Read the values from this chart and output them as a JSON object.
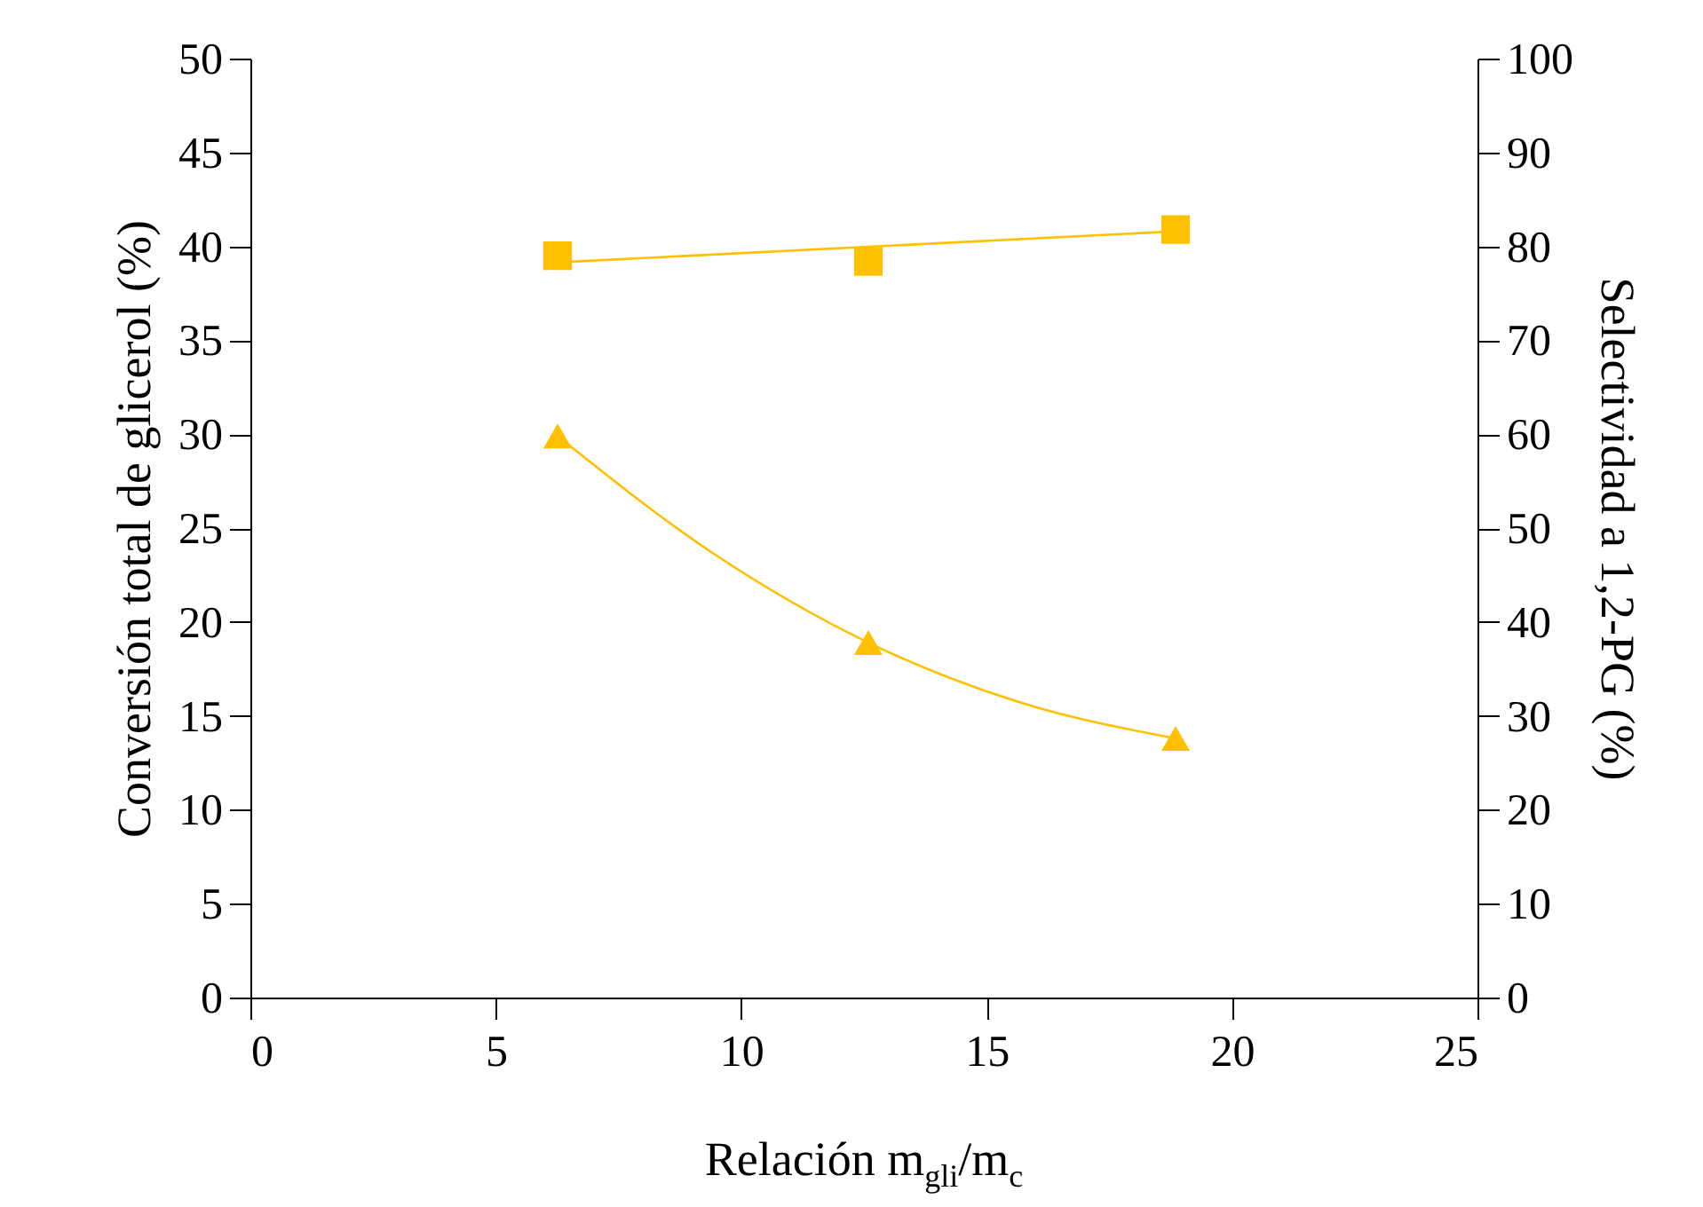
{
  "chart_data": {
    "type": "scatter",
    "xlabel": "Relación m$_{gli}$/m$_{c}$",
    "ylabel": "Conversión total de glicerol (%)",
    "y2label": "Selectividad a 1,2-PG (%)",
    "xlim": [
      0,
      25
    ],
    "xticks": [
      0,
      5,
      10,
      15,
      20,
      25
    ],
    "ylim": [
      0,
      50
    ],
    "yticks": [
      0,
      5,
      10,
      15,
      20,
      25,
      30,
      35,
      40,
      45,
      50
    ],
    "y2lim": [
      0,
      100
    ],
    "y2ticks": [
      0,
      10,
      20,
      30,
      40,
      50,
      60,
      70,
      80,
      90,
      100
    ],
    "grid": false,
    "series": [
      {
        "marker": "triangle",
        "color": "#ffc000",
        "x": [
          6.26,
          12.59,
          18.85
        ],
        "values": [
          29.9,
          18.9,
          13.8
        ]
      },
      {
        "type": "line",
        "marker": "none",
        "color": "#ffc000",
        "x": [
          6.26,
          9.4,
          12.59,
          15.7,
          18.85
        ],
        "values": [
          29.9,
          23.7,
          18.9,
          15.7,
          13.8
        ]
      },
      {
        "marker": "square",
        "axis": "y2",
        "color": "#ffc000",
        "x": [
          6.26,
          12.59,
          18.85
        ],
        "values": [
          79.0,
          78.4,
          81.8
        ]
      },
      {
        "type": "line",
        "marker": "none",
        "axis": "y2",
        "color": "#ffc000",
        "x": [
          6.26,
          18.85
        ],
        "values": [
          78.3,
          81.6
        ]
      }
    ]
  }
}
